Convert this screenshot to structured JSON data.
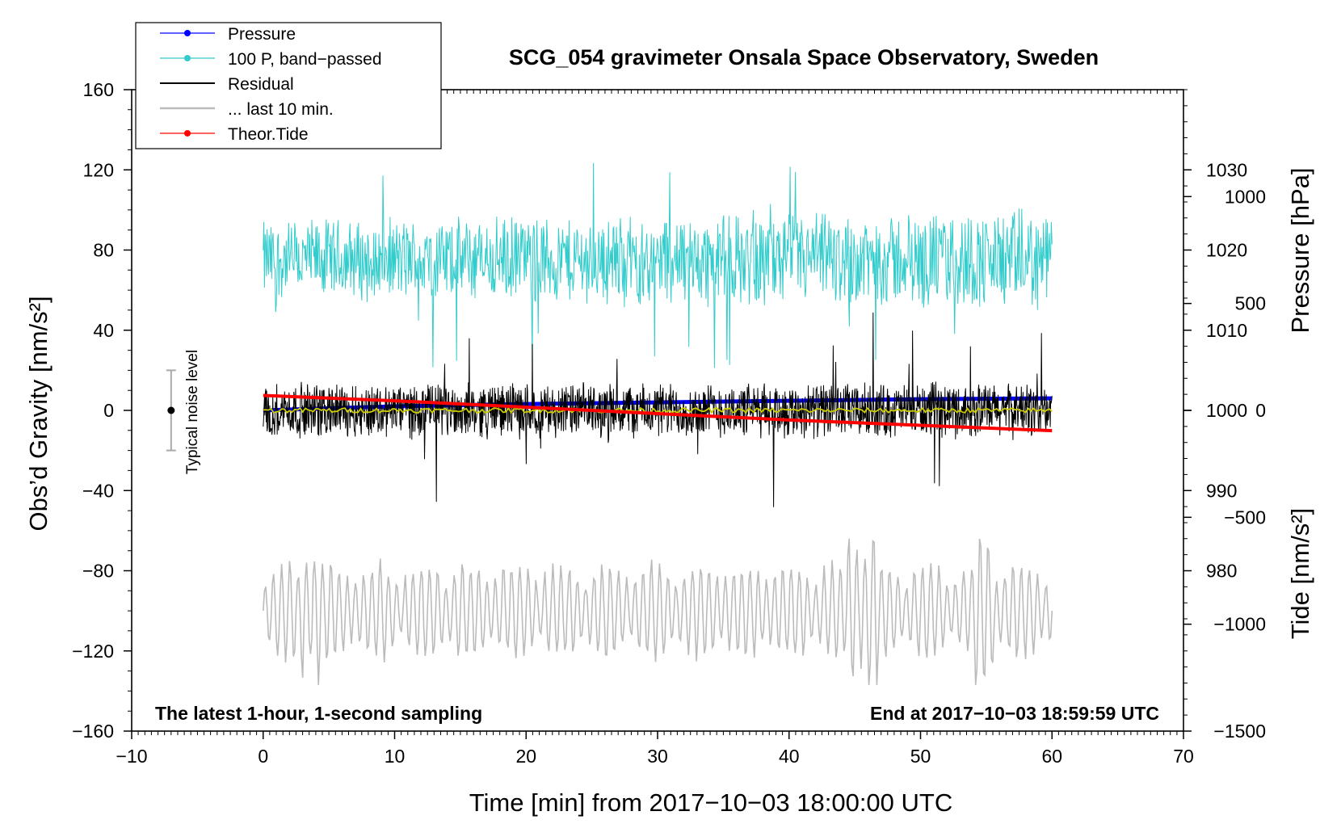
{
  "chart_data": {
    "type": "line",
    "title": "SCG_054 gravimeter Onsala Space Observatory, Sweden",
    "xlabel": "Time [min] from 2017−10−03 18:00:00 UTC",
    "ylabel_left": "Obs’d Gravity [nm/s²]",
    "ylabel_right_top": "Pressure [hPa]",
    "ylabel_right_bottom": "Tide [nm/s²]",
    "xlim": [
      -10,
      70
    ],
    "ylim_left": [
      -160,
      160
    ],
    "pressure_axis_range": [
      960,
      1040
    ],
    "tide_axis_range": [
      -1500,
      1500
    ],
    "x_ticks": [
      "−10",
      "0",
      "10",
      "20",
      "30",
      "40",
      "50",
      "60",
      "70"
    ],
    "y_ticks_left": [
      "160",
      "120",
      "80",
      "40",
      "0",
      "−40",
      "−80",
      "−120",
      "−160"
    ],
    "pressure_ticks": [
      "1030",
      "1020",
      "1010",
      "1000",
      "990",
      "980"
    ],
    "tide_ticks": [
      "1000",
      "500",
      "0",
      "−500",
      "−1000",
      "−1500"
    ],
    "annotation_left": "The latest 1-hour, 1-second sampling",
    "annotation_right": "End at 2017−10−03 18:59:59 UTC",
    "noise_label": "Typical noise level",
    "noise_bar": {
      "x": -7,
      "center": 0,
      "low": -20,
      "high": 20
    },
    "legend": [
      {
        "label": "Pressure",
        "color": "#0000ff",
        "marker": true
      },
      {
        "label": "100 P, band−passed",
        "color": "#33cccc",
        "marker": true
      },
      {
        "label": "Residual",
        "color": "#000000",
        "marker": false
      },
      {
        "label": "... last 10 min.",
        "color": "#bbbbbb",
        "marker": false
      },
      {
        "label": "Theor.Tide",
        "color": "#ff0000",
        "marker": true
      }
    ],
    "series": [
      {
        "name": "Pressure",
        "color": "#0000ff",
        "axis": "pressure_hPa",
        "x": [
          0,
          10,
          20,
          30,
          40,
          50,
          60
        ],
        "values": [
          1000.0,
          1000.5,
          1000.8,
          1001.0,
          1001.2,
          1001.4,
          1001.5
        ]
      },
      {
        "name": "100 P, band-passed",
        "color": "#33cccc",
        "axis": "gravity_nm_s2",
        "x_range": [
          0,
          60
        ],
        "center": 75,
        "amplitude_approx": 22,
        "max": 127,
        "min": 24
      },
      {
        "name": "Residual",
        "color": "#000000",
        "axis": "gravity_nm_s2",
        "x_range": [
          0,
          60
        ],
        "center": 0,
        "amplitude_approx": 15,
        "max": 55,
        "min": -52
      },
      {
        "name": "Residual smoothed",
        "color": "#cccc00",
        "axis": "gravity_nm_s2",
        "x_range": [
          0,
          60
        ],
        "center": 0
      },
      {
        "name": "... last 10 min.",
        "color": "#bbbbbb",
        "axis": "gravity_nm_s2",
        "x_range": [
          0,
          60
        ],
        "center": -100,
        "amplitude_approx": 18,
        "max": -64,
        "min": -137
      },
      {
        "name": "Theor.Tide",
        "color": "#ff0000",
        "axis": "tide_nm_s2",
        "x": [
          0,
          10,
          20,
          30,
          40,
          50,
          60
        ],
        "values": [
          70,
          45,
          15,
          -15,
          -45,
          -70,
          -95
        ]
      }
    ]
  }
}
